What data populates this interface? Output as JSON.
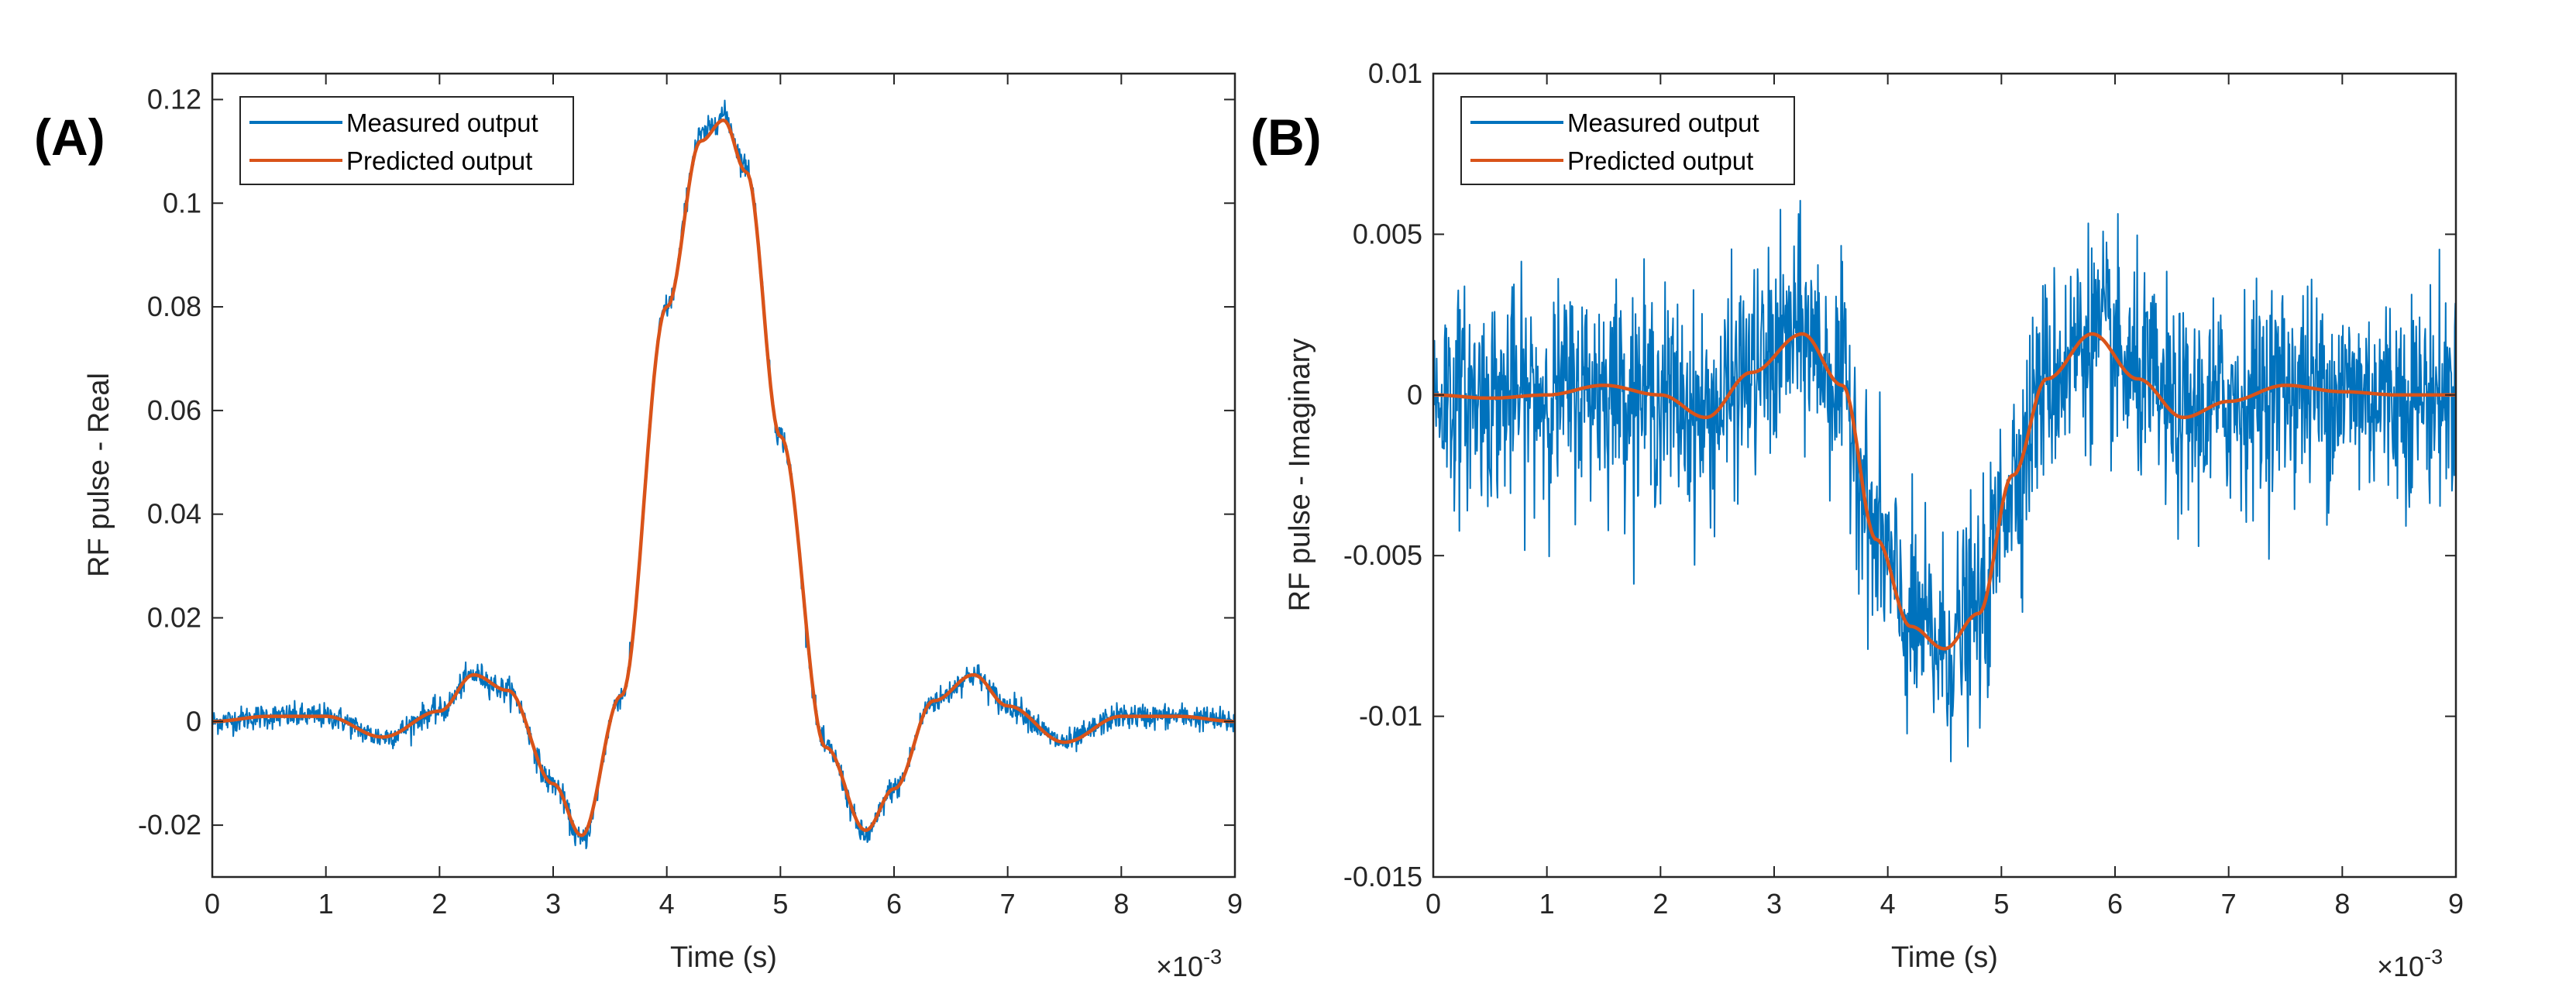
{
  "chart_data": [
    {
      "panel_label": "(A)",
      "type": "line",
      "title": "",
      "xlabel": "Time (s)",
      "ylabel": "RF pulse - Real",
      "x_exponent_base": "×10",
      "x_exponent_power": "-3",
      "xlim": [
        0,
        9
      ],
      "ylim": [
        -0.03,
        0.125
      ],
      "xticks": [
        0,
        1,
        2,
        3,
        4,
        5,
        6,
        7,
        8,
        9
      ],
      "xtick_labels": [
        "0",
        "1",
        "2",
        "3",
        "4",
        "5",
        "6",
        "7",
        "8",
        "9"
      ],
      "yticks": [
        -0.02,
        0,
        0.02,
        0.04,
        0.06,
        0.08,
        0.1,
        0.12
      ],
      "ytick_labels": [
        "-0.02",
        "0",
        "0.02",
        "0.04",
        "0.06",
        "0.08",
        "0.1",
        "0.12"
      ],
      "grid": false,
      "legend_position": "top-left",
      "colors": {
        "measured": "#0072BD",
        "predicted": "#D95319"
      },
      "series": [
        {
          "name": "Measured output",
          "color": "#0072BD",
          "noise_std": 0.0012,
          "x": [
            0,
            0.5,
            1,
            1.5,
            2,
            2.3,
            2.6,
            3,
            3.25,
            3.6,
            4,
            4.3,
            4.5,
            4.7,
            5,
            5.4,
            5.75,
            6,
            6.35,
            6.7,
            7,
            7.5,
            8,
            8.5,
            9
          ],
          "values": [
            0,
            0.001,
            0.001,
            -0.003,
            0.002,
            0.009,
            0.006,
            -0.012,
            -0.023,
            0.005,
            0.08,
            0.113,
            0.117,
            0.107,
            0.055,
            -0.005,
            -0.022,
            -0.013,
            0.004,
            0.009,
            0.003,
            -0.004,
            0.001,
            0.001,
            0
          ]
        },
        {
          "name": "Predicted output",
          "color": "#D95319",
          "x": [
            0,
            0.5,
            1,
            1.5,
            2,
            2.3,
            2.6,
            3,
            3.25,
            3.6,
            4,
            4.3,
            4.5,
            4.7,
            5,
            5.4,
            5.75,
            6,
            6.35,
            6.7,
            7,
            7.5,
            8,
            8.5,
            9
          ],
          "values": [
            0,
            0.001,
            0.001,
            -0.003,
            0.002,
            0.009,
            0.006,
            -0.012,
            -0.022,
            0.005,
            0.08,
            0.112,
            0.116,
            0.106,
            0.055,
            -0.005,
            -0.021,
            -0.013,
            0.004,
            0.009,
            0.003,
            -0.004,
            0.001,
            0.001,
            0
          ]
        }
      ]
    },
    {
      "panel_label": "(B)",
      "type": "line",
      "title": "",
      "xlabel": "Time (s)",
      "ylabel": "RF pulse - Imaginary",
      "x_exponent_base": "×10",
      "x_exponent_power": "-3",
      "xlim": [
        0,
        9
      ],
      "ylim": [
        -0.015,
        0.01
      ],
      "xticks": [
        0,
        1,
        2,
        3,
        4,
        5,
        6,
        7,
        8,
        9
      ],
      "xtick_labels": [
        "0",
        "1",
        "2",
        "3",
        "4",
        "5",
        "6",
        "7",
        "8",
        "9"
      ],
      "yticks": [
        -0.015,
        -0.01,
        -0.005,
        0,
        0.005,
        0.01
      ],
      "ytick_labels": [
        "-0.015",
        "-0.01",
        "-0.005",
        "0",
        "0.005",
        "0.01"
      ],
      "grid": false,
      "legend_position": "top-left",
      "colors": {
        "measured": "#0072BD",
        "predicted": "#D95319"
      },
      "series": [
        {
          "name": "Measured output",
          "color": "#0072BD",
          "noise_std": 0.0016,
          "x": [
            0,
            0.5,
            1,
            1.5,
            2,
            2.4,
            2.8,
            3.25,
            3.6,
            3.9,
            4.2,
            4.5,
            4.8,
            5.1,
            5.4,
            5.8,
            6.2,
            6.6,
            7,
            7.5,
            8,
            8.5,
            9
          ],
          "values": [
            0,
            -0.0001,
            0,
            0.0003,
            0,
            -0.0007,
            0.0007,
            0.0019,
            0.0003,
            -0.0045,
            -0.0072,
            -0.0079,
            -0.0068,
            -0.0025,
            0.0005,
            0.0019,
            0.0005,
            -0.0007,
            -0.0002,
            0.0003,
            0.0001,
            0,
            0
          ]
        },
        {
          "name": "Predicted output",
          "color": "#D95319",
          "x": [
            0,
            0.5,
            1,
            1.5,
            2,
            2.4,
            2.8,
            3.25,
            3.6,
            3.9,
            4.2,
            4.5,
            4.8,
            5.1,
            5.4,
            5.8,
            6.2,
            6.6,
            7,
            7.5,
            8,
            8.5,
            9
          ],
          "values": [
            0,
            -0.0001,
            0,
            0.0003,
            0,
            -0.0007,
            0.0007,
            0.0019,
            0.0003,
            -0.0045,
            -0.0072,
            -0.0079,
            -0.0068,
            -0.0025,
            0.0005,
            0.0019,
            0.0005,
            -0.0007,
            -0.0002,
            0.0003,
            0.0001,
            0,
            0
          ]
        }
      ]
    }
  ]
}
